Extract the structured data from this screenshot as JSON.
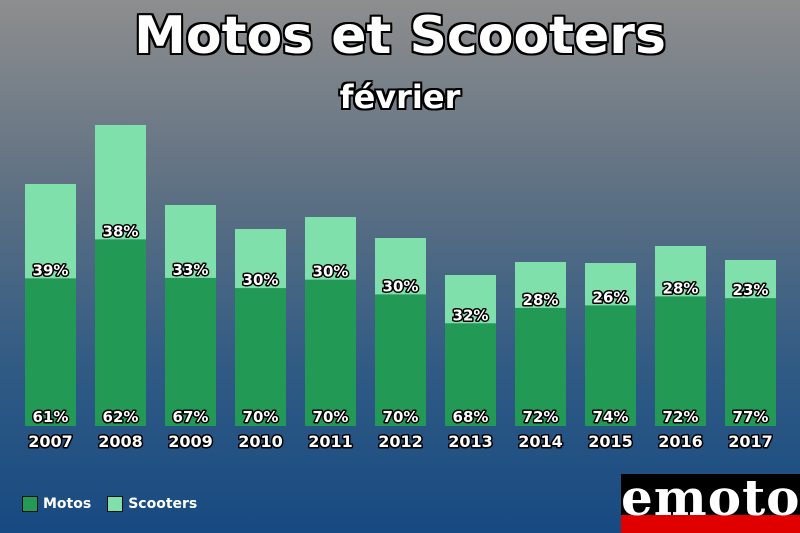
{
  "header": {
    "title": "Motos et Scooters",
    "subtitle": "février"
  },
  "chart_data": {
    "type": "bar",
    "stacked": true,
    "categories": [
      "2007",
      "2008",
      "2009",
      "2010",
      "2011",
      "2012",
      "2013",
      "2014",
      "2015",
      "2016",
      "2017"
    ],
    "totals_relative": [
      242,
      301,
      221,
      197,
      209,
      188,
      151,
      164,
      163,
      180,
      166
    ],
    "series": [
      {
        "name": "Motos",
        "color": "#229a55",
        "labels": [
          "61%",
          "62%",
          "67%",
          "70%",
          "70%",
          "70%",
          "68%",
          "72%",
          "74%",
          "72%",
          "77%"
        ],
        "values": [
          61,
          62,
          67,
          70,
          70,
          70,
          68,
          72,
          74,
          72,
          77
        ]
      },
      {
        "name": "Scooters",
        "color": "#80e0ac",
        "labels": [
          "39%",
          "38%",
          "33%",
          "30%",
          "30%",
          "30%",
          "32%",
          "28%",
          "26%",
          "28%",
          "23%"
        ],
        "values": [
          39,
          38,
          33,
          30,
          30,
          30,
          32,
          28,
          26,
          28,
          23
        ]
      }
    ],
    "grid": false,
    "legend": "bottom-left"
  },
  "legend": {
    "motos": "Motos",
    "scooters": "Scooters"
  },
  "logo": {
    "text": "emoto"
  }
}
